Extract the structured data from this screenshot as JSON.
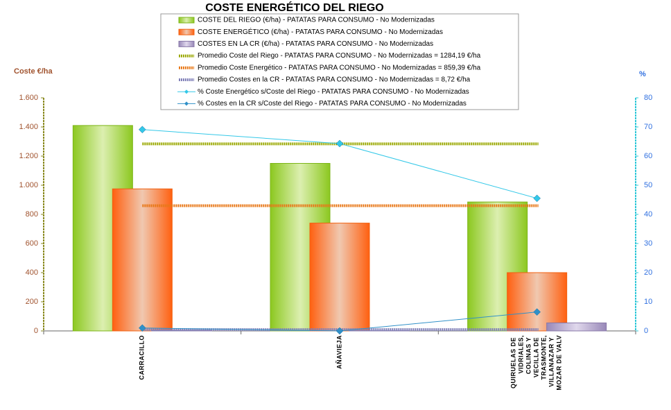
{
  "chart_data": {
    "type": "bar",
    "title": "COSTE ENERGÉTICO DEL RIEGO",
    "y_label": "Coste €/ha",
    "y2_label": "%",
    "categories": [
      "CARRACILLO",
      "AÑAVIEJA",
      "QUIRUELAS DE VIDRIALES,COLINAS Y VECILLA DE TRASMONTE,VILLANAZAR Y MOZAR DE VALV"
    ],
    "ylim": [
      0,
      1600
    ],
    "yticks": [
      {
        "value": 0,
        "label": "0"
      },
      {
        "value": 200,
        "label": "200"
      },
      {
        "value": 400,
        "label": "400"
      },
      {
        "value": 600,
        "label": "600"
      },
      {
        "value": 800,
        "label": "800"
      },
      {
        "value": 1000,
        "label": "1.000"
      },
      {
        "value": 1200,
        "label": "1.200"
      },
      {
        "value": 1400,
        "label": "1.400"
      },
      {
        "value": 1600,
        "label": "1.600"
      }
    ],
    "y2lim": [
      0,
      80
    ],
    "y2ticks": [
      0,
      10,
      20,
      30,
      40,
      50,
      60,
      70,
      80
    ],
    "series": [
      {
        "name": "COSTE DEL RIEGO (€/ha) - PATATAS PARA CONSUMO - No Modernizadas",
        "type": "bar",
        "color": "#7cb518",
        "values": [
          1410,
          1150,
          885
        ]
      },
      {
        "name": "COSTE ENERGÉTICO (€/ha) - PATATAS PARA CONSUMO - No Modernizadas",
        "type": "bar",
        "color": "#f06010",
        "values": [
          975,
          740,
          400
        ]
      },
      {
        "name": "COSTES EN LA CR (€/ha) - PATATAS PARA CONSUMO - No Modernizadas",
        "type": "bar",
        "color": "#8878a8",
        "values": [
          5,
          2,
          55
        ]
      },
      {
        "name": "Promedio Coste del Riego - PATATAS PARA CONSUMO - No Modernizadas = 1284,19 €/ha",
        "type": "average",
        "color": "#9aa800",
        "value": 1284.19
      },
      {
        "name": "Promedio Coste Energético - PATATAS PARA CONSUMO - No Modernizadas = 859,39 €/ha",
        "type": "average",
        "color": "#e87818",
        "value": 859.39
      },
      {
        "name": "Promedio Costes en la CR - PATATAS PARA CONSUMO - No Modernizadas = 8,72 €/ha",
        "type": "average",
        "color": "#8080b8",
        "value": 8.72
      },
      {
        "name": "% Coste Energético s/Coste del Riego - PATATAS PARA CONSUMO - No Modernizadas",
        "type": "line",
        "axis": "y2",
        "color": "#33c8e8",
        "values": [
          69.1,
          64.3,
          45.5
        ]
      },
      {
        "name": "% Costes en la CR s/Coste del Riego - PATATAS PARA CONSUMO - No Modernizadas",
        "type": "line",
        "axis": "y2",
        "color": "#3090c8",
        "values": [
          1,
          0,
          6.5
        ]
      }
    ]
  }
}
